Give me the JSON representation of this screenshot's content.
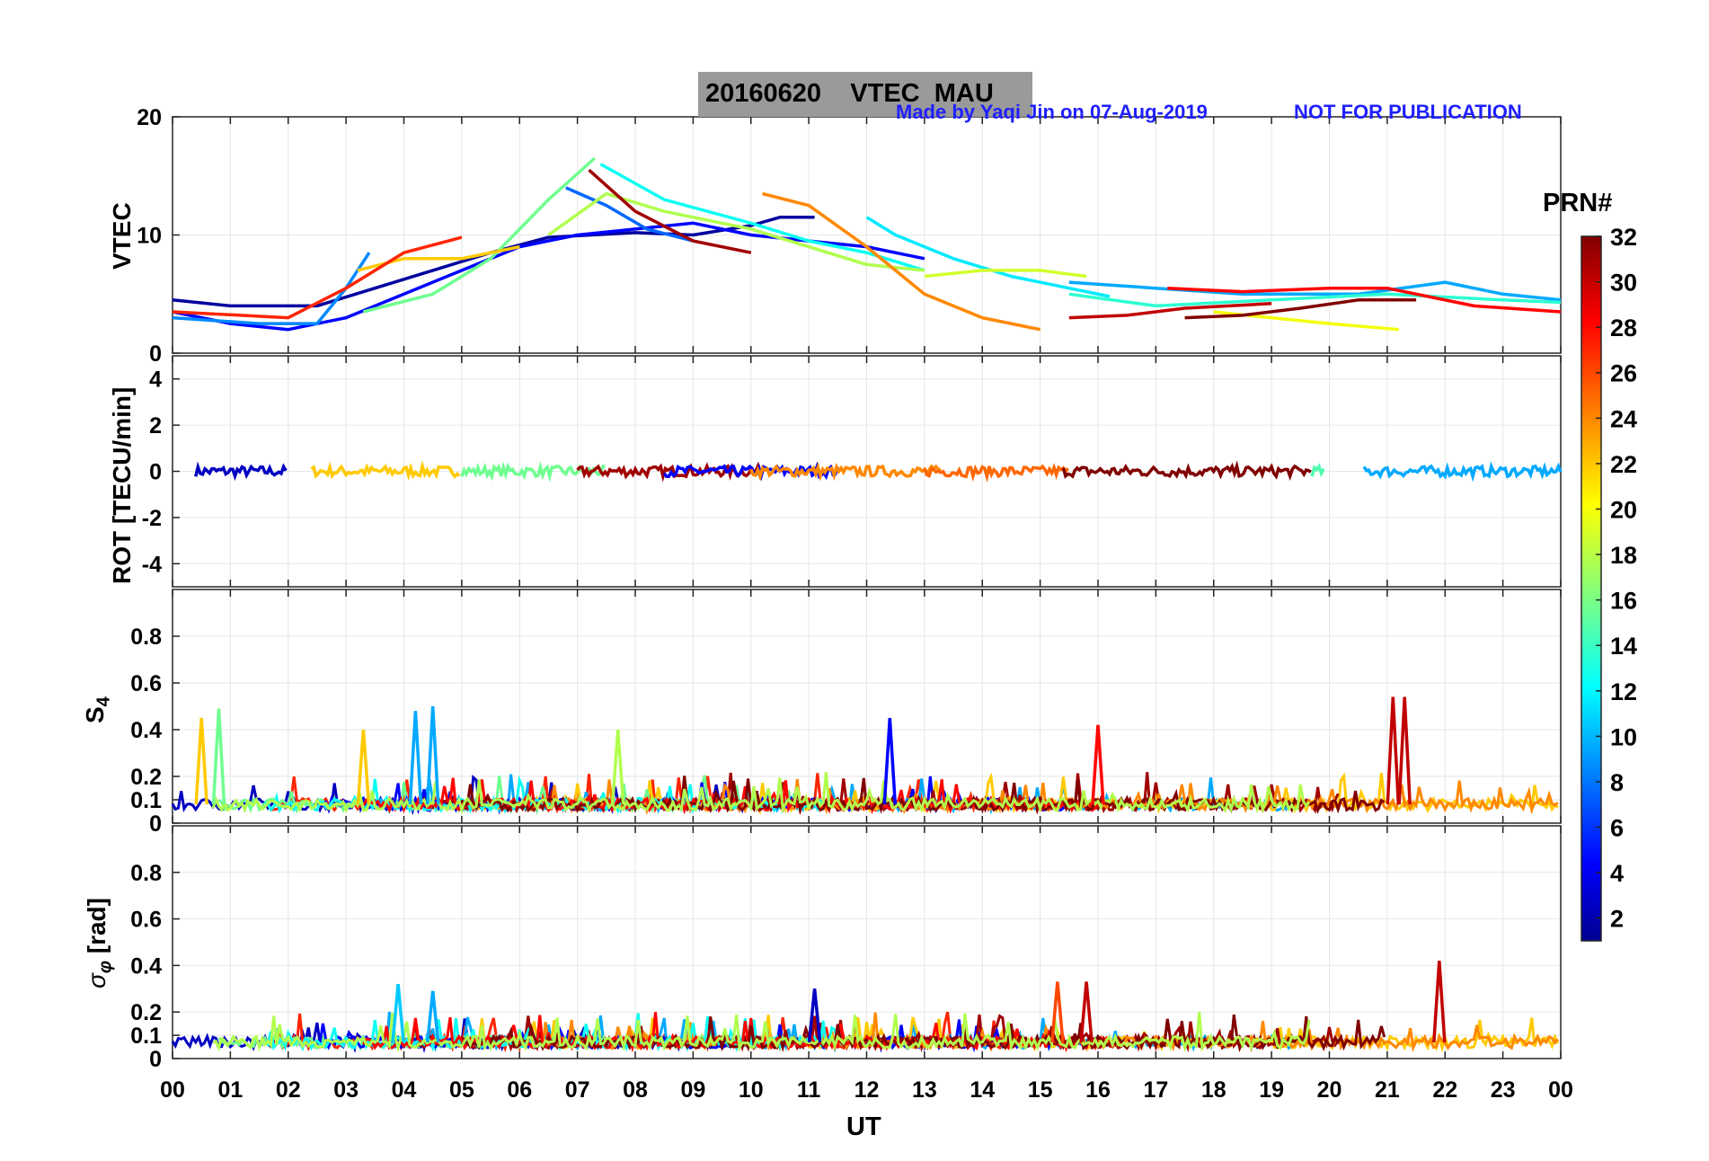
{
  "header": {
    "title": "20160620    VTEC  MAU",
    "credit": "Made by Yaqi Jin on 07-Aug-2019",
    "notice": "NOT FOR PUBLICATION"
  },
  "colorbar": {
    "title": "PRN#",
    "ticks": [
      "2",
      "4",
      "6",
      "8",
      "10",
      "12",
      "14",
      "16",
      "18",
      "20",
      "22",
      "24",
      "26",
      "28",
      "30",
      "32"
    ],
    "range": [
      1,
      32
    ],
    "colormap": "jet"
  },
  "chart_data": [
    {
      "type": "line",
      "ylabel": "VTEC",
      "ylim": [
        0,
        20
      ],
      "yticks": [
        "0",
        "10",
        "20"
      ],
      "grid": true,
      "series": [
        {
          "prn": 2,
          "x": [
            0,
            1,
            2,
            2.5,
            3.5,
            4.5,
            5.5,
            6.5,
            8,
            9,
            10,
            10.5,
            11.1
          ],
          "y": [
            4.5,
            4,
            4,
            4,
            5.5,
            7,
            8.5,
            9.8,
            10.2,
            10,
            10.8,
            11.5,
            11.5
          ]
        },
        {
          "prn": 5,
          "x": [
            0,
            1,
            2,
            3,
            4,
            5,
            6,
            7,
            8,
            9,
            10,
            11,
            12,
            13
          ],
          "y": [
            3.5,
            2.5,
            2,
            3,
            5,
            7,
            9,
            10,
            10.5,
            11,
            10,
            9.5,
            9,
            8
          ]
        },
        {
          "prn": 8,
          "x": [
            6.8,
            7.5,
            8.2,
            9
          ],
          "y": [
            14,
            12.5,
            10.5,
            9.5
          ]
        },
        {
          "prn": 9,
          "x": [
            0,
            1.5,
            2.5,
            3,
            3.4
          ],
          "y": [
            3,
            2.5,
            2.5,
            5.5,
            8.5
          ]
        },
        {
          "prn": 10,
          "x": [
            15.5,
            17,
            18.5,
            20.5,
            22,
            23,
            24
          ],
          "y": [
            6,
            5.5,
            5,
            5,
            6,
            5,
            4.5
          ]
        },
        {
          "prn": 12,
          "x": [
            12,
            12.5,
            13.5,
            14.5,
            15.5,
            16.2
          ],
          "y": [
            11.5,
            10,
            8,
            6.5,
            5.5,
            4.8
          ]
        },
        {
          "prn": 13,
          "x": [
            7.4,
            8.5,
            10,
            11,
            12,
            13
          ],
          "y": [
            16,
            13,
            11,
            9.5,
            8.5,
            7
          ]
        },
        {
          "prn": 14,
          "x": [
            15.5,
            17,
            19,
            21,
            23,
            24
          ],
          "y": [
            5,
            4,
            4.5,
            5,
            4.5,
            4.3
          ]
        },
        {
          "prn": 16,
          "x": [
            3.3,
            4.5,
            5.5,
            6.5,
            7.3
          ],
          "y": [
            3.5,
            5,
            8,
            13,
            16.5
          ]
        },
        {
          "prn": 18,
          "x": [
            6.5,
            7.5,
            8.5,
            10,
            11,
            12,
            13
          ],
          "y": [
            10,
            13.5,
            12,
            10.5,
            9,
            7.5,
            7
          ]
        },
        {
          "prn": 19,
          "x": [
            13,
            14,
            15,
            15.8
          ],
          "y": [
            6.5,
            7,
            7,
            6.5
          ]
        },
        {
          "prn": 20,
          "x": [
            18,
            19,
            20,
            21.2
          ],
          "y": [
            3.5,
            3,
            2.5,
            2
          ]
        },
        {
          "prn": 22,
          "x": [
            3.2,
            4,
            5,
            6
          ],
          "y": [
            7,
            8,
            8,
            9
          ]
        },
        {
          "prn": 24,
          "x": [
            10.2,
            11,
            12,
            13,
            14,
            15
          ],
          "y": [
            13.5,
            12.5,
            9,
            5,
            3,
            2
          ]
        },
        {
          "prn": 27,
          "x": [
            0,
            2,
            3,
            4,
            5
          ],
          "y": [
            3.5,
            3,
            5.5,
            8.5,
            9.8
          ]
        },
        {
          "prn": 28,
          "x": [
            17.2,
            18.5,
            20,
            21,
            22.5,
            24
          ],
          "y": [
            5.5,
            5.2,
            5.5,
            5.5,
            4,
            3.5
          ]
        },
        {
          "prn": 30,
          "x": [
            15.5,
            16.5,
            17.5,
            19
          ],
          "y": [
            3,
            3.2,
            3.8,
            4.2
          ]
        },
        {
          "prn": 31,
          "x": [
            7.2,
            8,
            9,
            10
          ],
          "y": [
            15.5,
            12,
            9.5,
            8.5
          ]
        },
        {
          "prn": 32,
          "x": [
            17.5,
            18.5,
            19.5,
            20.5,
            21.5
          ],
          "y": [
            3,
            3.2,
            3.8,
            4.5,
            4.5
          ]
        }
      ]
    },
    {
      "type": "line",
      "ylabel": "ROT [TECU/min]",
      "ylim": [
        -5,
        5
      ],
      "yticks": [
        "-4",
        "-2",
        "0",
        "2",
        "4"
      ],
      "grid": true,
      "note": "all PRNs near 0 within about ±0.5 TECU/min"
    },
    {
      "type": "line",
      "ylabel": "S4",
      "ylim": [
        0,
        1
      ],
      "yticks": [
        "0",
        "0.1",
        "0.2",
        "0.4",
        "0.6",
        "0.8"
      ],
      "grid": true,
      "baseline": 0.08,
      "peaks": [
        {
          "x": 0.5,
          "y": 0.45,
          "prn": 22
        },
        {
          "x": 0.8,
          "y": 0.49,
          "prn": 16
        },
        {
          "x": 3.3,
          "y": 0.4,
          "prn": 22
        },
        {
          "x": 4.2,
          "y": 0.48,
          "prn": 10
        },
        {
          "x": 4.5,
          "y": 0.5,
          "prn": 10
        },
        {
          "x": 7.7,
          "y": 0.4,
          "prn": 18
        },
        {
          "x": 12.4,
          "y": 0.45,
          "prn": 5
        },
        {
          "x": 16,
          "y": 0.42,
          "prn": 28
        },
        {
          "x": 21.1,
          "y": 0.54,
          "prn": 30
        },
        {
          "x": 21.3,
          "y": 0.54,
          "prn": 30
        }
      ]
    },
    {
      "type": "line",
      "ylabel": "σφ [rad]",
      "ylim": [
        0,
        1
      ],
      "yticks": [
        "0",
        "0.1",
        "0.2",
        "0.4",
        "0.6",
        "0.8"
      ],
      "grid": true,
      "baseline": 0.07,
      "peaks": [
        {
          "x": 3.9,
          "y": 0.32,
          "prn": 11
        },
        {
          "x": 4.5,
          "y": 0.29,
          "prn": 10
        },
        {
          "x": 11.1,
          "y": 0.3,
          "prn": 3
        },
        {
          "x": 15.3,
          "y": 0.33,
          "prn": 26
        },
        {
          "x": 15.8,
          "y": 0.33,
          "prn": 30
        },
        {
          "x": 21.9,
          "y": 0.42,
          "prn": 30
        }
      ]
    }
  ],
  "xaxis": {
    "label": "UT",
    "ticks": [
      "00",
      "01",
      "02",
      "03",
      "04",
      "05",
      "06",
      "07",
      "08",
      "09",
      "10",
      "11",
      "12",
      "13",
      "14",
      "15",
      "16",
      "17",
      "18",
      "19",
      "20",
      "21",
      "22",
      "23",
      "00"
    ]
  }
}
